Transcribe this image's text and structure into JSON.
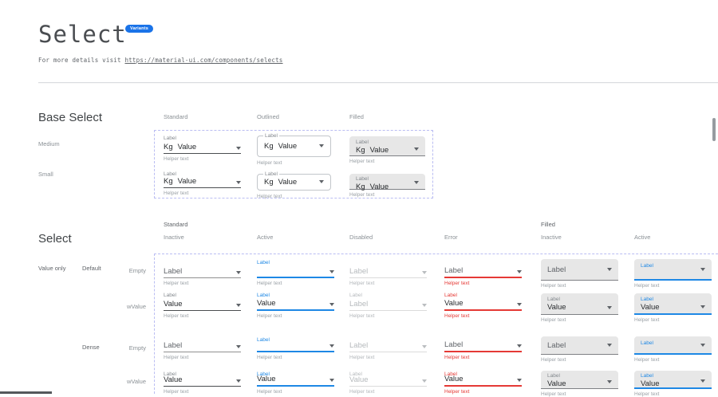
{
  "header": {
    "title": "Select",
    "badge": "Variants",
    "subtitle_prefix": "For more details visit ",
    "subtitle_link": "https://material-ui.com/components/selects"
  },
  "base_select": {
    "heading": "Base Select",
    "columns": [
      "Standard",
      "Outlined",
      "Filled"
    ],
    "rows": [
      "Medium",
      "Small"
    ],
    "control": {
      "label": "Label",
      "prefix": "Kg",
      "value": "Value",
      "helper": "Helper text"
    }
  },
  "select": {
    "heading": "Select",
    "groups": [
      {
        "label": "Standard",
        "columns": [
          "Inactive",
          "Active",
          "Disabled",
          "Error"
        ]
      },
      {
        "label": "Filled",
        "columns": [
          "Inactive",
          "Active"
        ]
      }
    ],
    "row_group_label": "Value only",
    "variant_labels": [
      "Default",
      "Dense"
    ],
    "state_labels": [
      "Empty",
      "wValue"
    ],
    "rows": [
      {
        "variant": "Default",
        "state": "Empty",
        "cells": [
          {
            "type": "standard",
            "state": "inactive",
            "kind": "empty",
            "label": "Label",
            "value": "",
            "helper": "Helper text"
          },
          {
            "type": "standard",
            "state": "active",
            "kind": "empty-active",
            "label": "Label",
            "value": "",
            "helper": "Helper text"
          },
          {
            "type": "standard",
            "state": "disabled",
            "kind": "empty",
            "label": "Label",
            "value": "",
            "helper": "Helper text"
          },
          {
            "type": "standard",
            "state": "error",
            "kind": "empty",
            "label": "Label",
            "value": "",
            "helper": "Helper text"
          },
          {
            "type": "filled",
            "state": "inactive",
            "kind": "empty",
            "label": "Label",
            "value": "",
            "helper": "Helper text"
          },
          {
            "type": "filled",
            "state": "active",
            "kind": "empty-active",
            "label": "Label",
            "value": "",
            "helper": "Helper text"
          }
        ]
      },
      {
        "variant": "Default",
        "state": "wValue",
        "cells": [
          {
            "type": "standard",
            "state": "inactive",
            "kind": "value",
            "label": "Label",
            "value": "Value",
            "helper": "Helper text"
          },
          {
            "type": "standard",
            "state": "active",
            "kind": "value",
            "label": "Label",
            "value": "Value",
            "helper": "Helper text"
          },
          {
            "type": "standard",
            "state": "disabled",
            "kind": "value",
            "label": "Label",
            "value": "Label",
            "helper": "Helper text"
          },
          {
            "type": "standard",
            "state": "error",
            "kind": "value",
            "label": "Label",
            "value": "Value",
            "helper": "Helper text"
          },
          {
            "type": "filled",
            "state": "inactive",
            "kind": "value",
            "label": "Label",
            "value": "Value",
            "helper": "Helper text"
          },
          {
            "type": "filled",
            "state": "active",
            "kind": "value",
            "label": "Label",
            "value": "Value",
            "helper": "Helper text"
          }
        ]
      },
      {
        "variant": "Dense",
        "state": "Empty",
        "cells": [
          {
            "type": "standard",
            "state": "inactive",
            "kind": "empty",
            "label": "Label",
            "value": "",
            "helper": "Helper text"
          },
          {
            "type": "standard",
            "state": "active",
            "kind": "empty-active",
            "label": "Label",
            "value": "",
            "helper": "Helper text"
          },
          {
            "type": "standard",
            "state": "disabled",
            "kind": "empty",
            "label": "Label",
            "value": "",
            "helper": "Helper text"
          },
          {
            "type": "standard",
            "state": "error",
            "kind": "empty",
            "label": "Label",
            "value": "",
            "helper": "Helper text"
          },
          {
            "type": "filled",
            "state": "inactive",
            "kind": "empty",
            "label": "Label",
            "value": "",
            "helper": "Helper text"
          },
          {
            "type": "filled",
            "state": "active",
            "kind": "empty-active",
            "label": "Label",
            "value": "",
            "helper": "Helper text"
          }
        ]
      },
      {
        "variant": "Dense",
        "state": "wValue",
        "cells": [
          {
            "type": "standard",
            "state": "inactive",
            "kind": "value",
            "label": "Label",
            "value": "Value",
            "helper": "Helper text"
          },
          {
            "type": "standard",
            "state": "active",
            "kind": "value",
            "label": "Label",
            "value": "Value",
            "helper": "Helper text"
          },
          {
            "type": "standard",
            "state": "disabled",
            "kind": "value",
            "label": "Label",
            "value": "Value",
            "helper": "Helper text"
          },
          {
            "type": "standard",
            "state": "error",
            "kind": "value",
            "label": "Label",
            "value": "Value",
            "helper": "Helper text"
          },
          {
            "type": "filled",
            "state": "inactive",
            "kind": "value",
            "label": "Label",
            "value": "Value",
            "helper": "Helper text"
          },
          {
            "type": "filled",
            "state": "active",
            "kind": "value",
            "label": "Label",
            "value": "Value",
            "helper": "Helper text"
          }
        ]
      }
    ]
  },
  "colors": {
    "badge_blue": "#1a73e8",
    "accent_blue": "#1e88e5",
    "error_red": "#e53935",
    "filled_bg": "#e7e7e7",
    "dashed_border": "#babdf2"
  }
}
